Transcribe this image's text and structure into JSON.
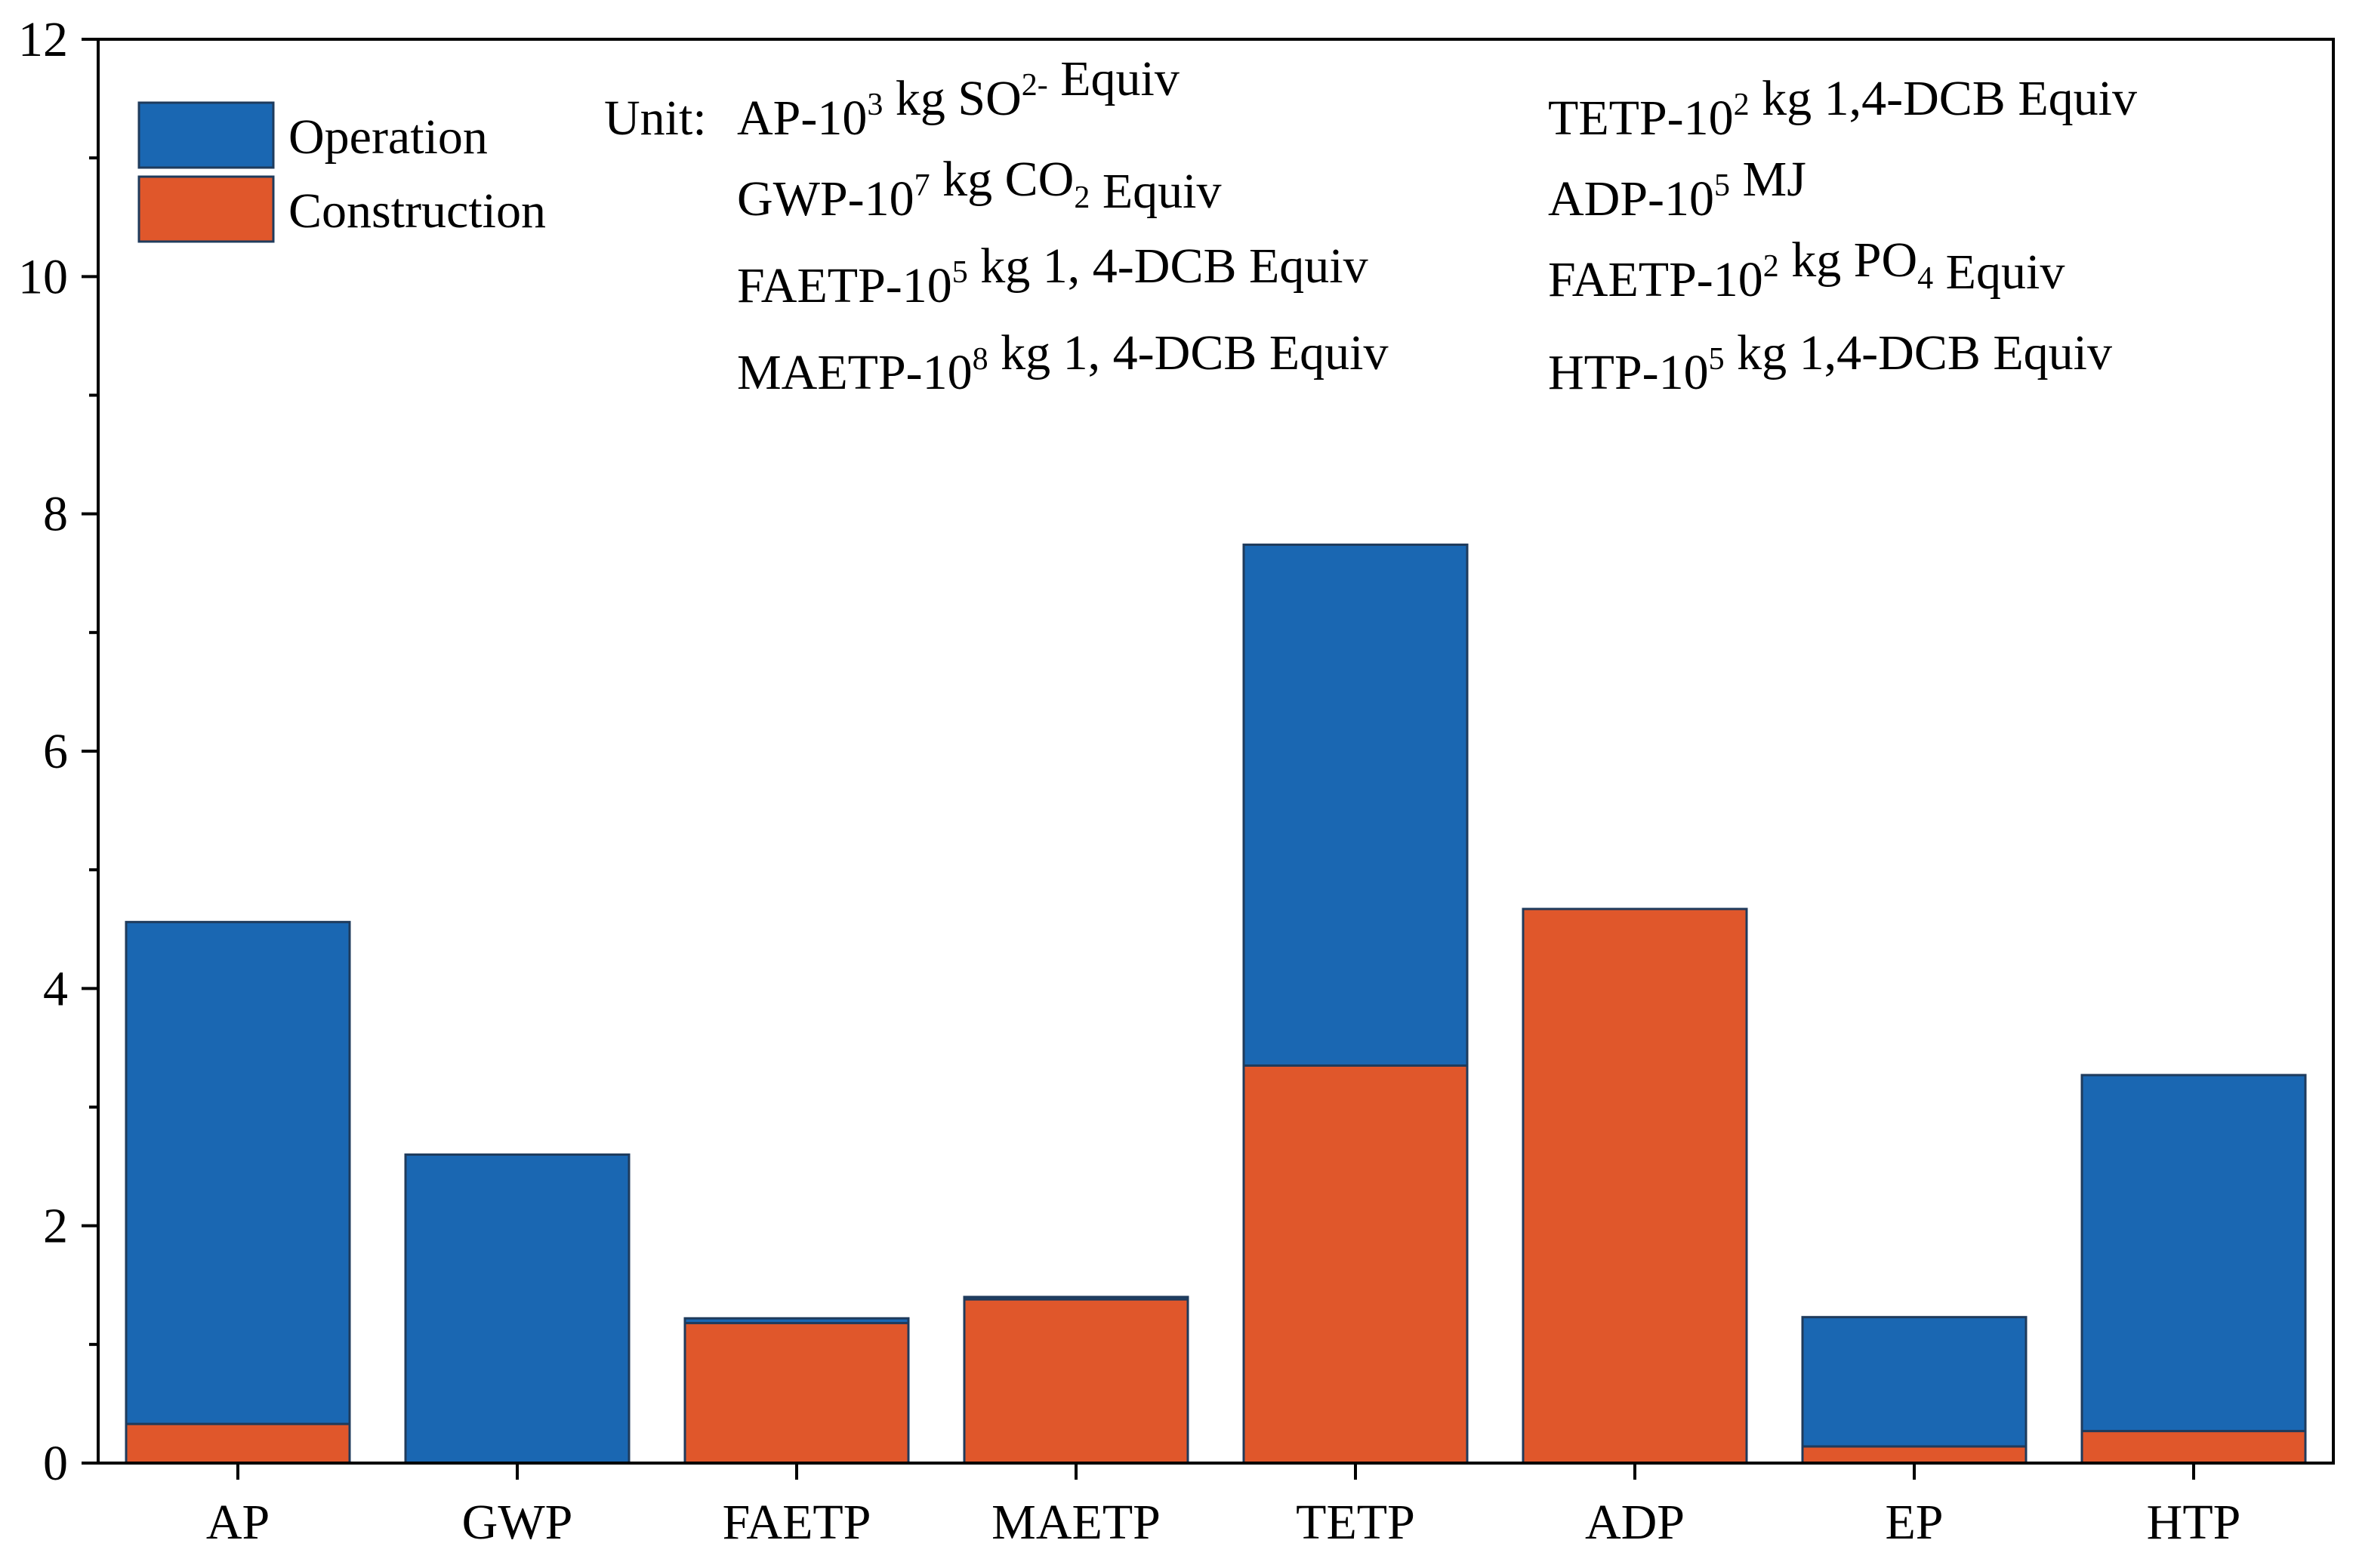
{
  "chart_data": {
    "type": "bar",
    "stacked": true,
    "title": "",
    "xlabel": "",
    "ylabel": "",
    "ylim": [
      0,
      12
    ],
    "yticks": [
      "0",
      "2",
      "4",
      "6",
      "8",
      "10",
      "12"
    ],
    "grid": false,
    "legend_position": "top-left",
    "categories": [
      "AP",
      "GWP",
      "FAETP",
      "MAETP",
      "TETP",
      "ADP",
      "EP",
      "HTP"
    ],
    "series": [
      {
        "name": "Construction",
        "color": "#E0572B",
        "values": [
          0.33,
          0.0,
          1.18,
          1.38,
          3.35,
          4.67,
          0.14,
          0.27
        ]
      },
      {
        "name": "Operation",
        "color": "#1A67B2",
        "values": [
          4.23,
          2.6,
          0.04,
          0.02,
          4.39,
          0.0,
          1.09,
          3.0
        ]
      }
    ],
    "legend": [
      {
        "label": "Operation",
        "color": "#1A67B2"
      },
      {
        "label": "Construction",
        "color": "#E0572B"
      }
    ],
    "annotation": {
      "prefix": "Unit:",
      "left_column": [
        {
          "parts": [
            [
              "AP-10",
              ""
            ],
            [
              "3",
              "sup"
            ],
            [
              " kg SO",
              ""
            ],
            [
              "2-",
              "sup"
            ],
            [
              " Equiv",
              ""
            ]
          ]
        },
        {
          "parts": [
            [
              "GWP-10",
              ""
            ],
            [
              "7",
              "sup"
            ],
            [
              " kg CO",
              ""
            ],
            [
              "2",
              "sub"
            ],
            [
              " Equiv",
              ""
            ]
          ]
        },
        {
          "parts": [
            [
              "FAETP-10",
              ""
            ],
            [
              "5",
              "sup"
            ],
            [
              " kg 1, 4-DCB Equiv",
              ""
            ]
          ]
        },
        {
          "parts": [
            [
              "MAETP-10",
              ""
            ],
            [
              "8",
              "sup"
            ],
            [
              " kg 1, 4-DCB Equiv",
              ""
            ]
          ]
        }
      ],
      "right_column": [
        {
          "parts": [
            [
              "TETP-10",
              ""
            ],
            [
              "2",
              "sup"
            ],
            [
              " kg 1,4-DCB Equiv",
              ""
            ]
          ]
        },
        {
          "parts": [
            [
              "ADP-10",
              ""
            ],
            [
              "5",
              "sup"
            ],
            [
              " MJ",
              ""
            ]
          ]
        },
        {
          "parts": [
            [
              "FAETP-10",
              ""
            ],
            [
              "2",
              "sup"
            ],
            [
              " kg PO",
              ""
            ],
            [
              "4",
              "sub"
            ],
            [
              " Equiv",
              ""
            ]
          ]
        },
        {
          "parts": [
            [
              "HTP-10",
              ""
            ],
            [
              "5",
              "sup"
            ],
            [
              " kg 1,4-DCB Equiv",
              ""
            ]
          ]
        }
      ]
    }
  }
}
